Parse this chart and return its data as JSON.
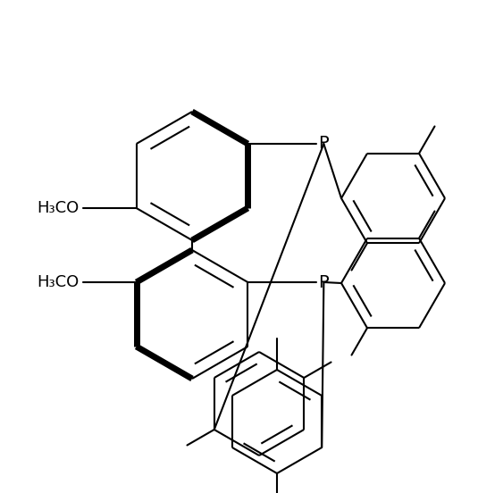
{
  "background_color": "#ffffff",
  "line_color": "#000000",
  "lw": 1.5,
  "blw": 5.0,
  "figsize": [
    5.35,
    5.52
  ],
  "dpi": 100,
  "xlim": [
    0,
    535
  ],
  "ylim": [
    0,
    552
  ]
}
